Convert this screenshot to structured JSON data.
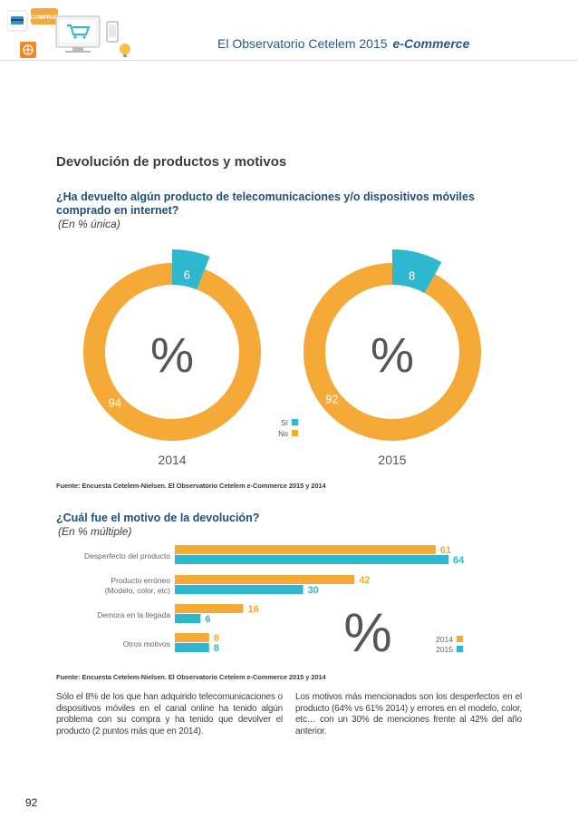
{
  "header": {
    "title": "El Observatorio Cetelem 2015",
    "subtitle": "e-Commerce",
    "illustration_button_label": "COMPRAR"
  },
  "section_title": "Devolución de productos y motivos",
  "question1": {
    "text": "¿Ha devuelto algún producto de telecomunicaciones y/o dispositivos móviles comprado en internet?",
    "note": "(En % única)"
  },
  "question2": {
    "text": "¿Cuál fue el motivo de la devolución?",
    "note": "(En % múltiple)"
  },
  "source1": "Fuente: Encuesta Cetelem-Nielsen. El Observatorio Cetelem e-Commerce 2015 y 2014",
  "source2": "Fuente: Encuesta Cetelem-Nielsen. El Observatorio Cetelem e-Commerce 2015 y 2014",
  "body_left": "Sólo el 8% de los que han adquirido telecomunicaciones o dispositivos móviles en el canal online ha tenido algún problema con su compra y ha tenido que devolver el producto (2 puntos más que en 2014).",
  "body_right": "Los motivos más mencionados son los desperfectos en el producto (64% vs 61% 2014) y errores en el modelo, color, etc… con un 30% de menciones frente al 42% del año anterior.",
  "page_number": "92",
  "colors": {
    "yes": "#2eb8cf",
    "no": "#f5a936",
    "y2014": "#f5a936",
    "y2015": "#2eb8cf",
    "title_blue": "#20507a"
  },
  "chart_data": [
    {
      "type": "pie",
      "variant": "donut",
      "title": "2014",
      "center_label": "%",
      "categories": [
        "Sí",
        "No"
      ],
      "values": [
        6,
        94
      ]
    },
    {
      "type": "pie",
      "variant": "donut",
      "title": "2015",
      "center_label": "%",
      "categories": [
        "Sí",
        "No"
      ],
      "values": [
        8,
        92
      ],
      "legend": [
        "Sí",
        "No"
      ]
    },
    {
      "type": "bar",
      "orientation": "horizontal",
      "categories": [
        "Desperfecto del producto",
        "Producto erróneo\n(Modelo, color, etc)",
        "Demora en la llegada",
        "Otros motivos"
      ],
      "series": [
        {
          "name": "2014",
          "values": [
            61,
            42,
            16,
            8
          ]
        },
        {
          "name": "2015",
          "values": [
            64,
            30,
            6,
            8
          ]
        }
      ],
      "center_label": "%",
      "xlim": [
        0,
        64
      ]
    }
  ]
}
